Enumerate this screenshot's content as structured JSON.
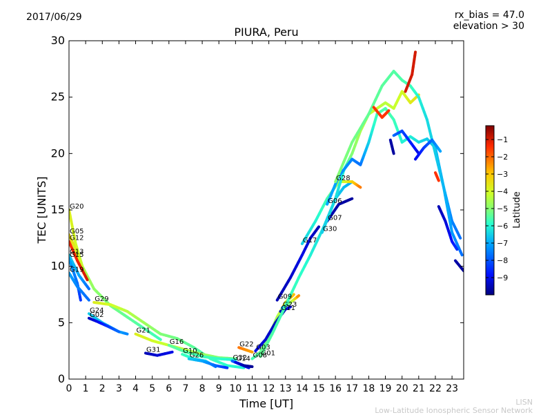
{
  "header": {
    "date": "2017/06/29",
    "rx_bias": "rx_bias = 47.0",
    "elevation": "elevation > 30"
  },
  "footer": {
    "credit_short": "LISN",
    "credit_long": "Low-Latitude Ionospheric Sensor Network"
  },
  "chart_data": {
    "type": "scatter",
    "title": "PIURA, Peru",
    "xlabel": "Time [UT]",
    "ylabel": "TEC [UNITS]",
    "xlim": [
      0,
      23.7
    ],
    "ylim": [
      0,
      30
    ],
    "xticks": [
      0,
      1,
      2,
      3,
      4,
      5,
      6,
      7,
      8,
      9,
      10,
      11,
      12,
      13,
      14,
      15,
      16,
      17,
      18,
      19,
      20,
      21,
      22,
      23
    ],
    "yticks": [
      0,
      5,
      10,
      15,
      20,
      25,
      30
    ],
    "grid": false,
    "colorbar": {
      "label": "Latitude",
      "range": [
        -10,
        -0.2
      ],
      "ticks": [
        -1,
        -2,
        -3,
        -4,
        -5,
        -6,
        -7,
        -8,
        -9
      ],
      "colors": [
        "#00007f",
        "#0010ff",
        "#00a4ff",
        "#29ffce",
        "#7dff7a",
        "#ceff29",
        "#ffc400",
        "#ff2900",
        "#7f0000"
      ]
    },
    "series": [
      {
        "name": "G20",
        "points": [
          [
            0,
            15
          ],
          [
            0.4,
            12
          ],
          [
            0.8,
            10
          ],
          [
            1.5,
            8
          ],
          [
            2.5,
            6.5
          ],
          [
            3.5,
            5.5
          ],
          [
            4.5,
            4.5
          ],
          [
            5.5,
            3.5
          ]
        ],
        "lat": [
          -3.5,
          -3.8,
          -4.2,
          -4.8,
          -5.2,
          -5.5,
          -5.8,
          -6
        ]
      },
      {
        "name": "G05",
        "points": [
          [
            0,
            12.8
          ],
          [
            0.4,
            11.5
          ],
          [
            0.8,
            10
          ]
        ],
        "lat": [
          -3,
          -3.5,
          -4
        ]
      },
      {
        "name": "G12",
        "points": [
          [
            0,
            12.2
          ],
          [
            0.5,
            10.5
          ],
          [
            1.1,
            8.8
          ]
        ],
        "lat": [
          -1.5,
          -1.3,
          -1
        ]
      },
      {
        "name": "G13",
        "points": [
          [
            0,
            11
          ],
          [
            0.6,
            9.2
          ],
          [
            1.2,
            8
          ]
        ],
        "lat": [
          -7,
          -7.5,
          -8
        ]
      },
      {
        "name": "G15",
        "points": [
          [
            0,
            10.7
          ],
          [
            0.5,
            8.5
          ],
          [
            0.7,
            7
          ]
        ],
        "lat": [
          -7.5,
          -8,
          -8.5
        ]
      },
      {
        "name": "G19",
        "points": [
          [
            0,
            9.4
          ],
          [
            0.5,
            8.2
          ],
          [
            1.2,
            7
          ]
        ],
        "lat": [
          -7.5,
          -7.8,
          -8
        ]
      },
      {
        "name": "G29",
        "points": [
          [
            1.5,
            6.8
          ],
          [
            2.5,
            6.6
          ],
          [
            3.5,
            6.0
          ],
          [
            4.5,
            5.0
          ],
          [
            5.5,
            4.0
          ],
          [
            6.5,
            3.6
          ],
          [
            7.5,
            2.8
          ],
          [
            8.5,
            1.8
          ],
          [
            9.5,
            1.2
          ],
          [
            10.5,
            1.0
          ]
        ],
        "lat": [
          -3.5,
          -3.8,
          -4.2,
          -4.6,
          -5,
          -5.3,
          -5.6,
          -6,
          -6.3,
          -6.5
        ]
      },
      {
        "name": "G24",
        "points": [
          [
            1.2,
            5.8
          ],
          [
            2.0,
            5.0
          ],
          [
            3.0,
            4.2
          ],
          [
            3.5,
            4.0
          ]
        ],
        "lat": [
          -7,
          -7.2,
          -7.5,
          -7.8
        ]
      },
      {
        "name": "G02",
        "points": [
          [
            1.2,
            5.4
          ],
          [
            1.7,
            5.1
          ],
          [
            2.3,
            4.7
          ],
          [
            3.0,
            4.2
          ]
        ],
        "lat": [
          -9.5,
          -9,
          -8.5,
          -8
        ]
      },
      {
        "name": "G21",
        "points": [
          [
            4,
            4
          ],
          [
            5,
            3.4
          ],
          [
            6,
            3.0
          ],
          [
            7,
            2.6
          ],
          [
            8,
            2.2
          ],
          [
            9,
            1.9
          ],
          [
            10,
            1.8
          ]
        ],
        "lat": [
          -3.5,
          -3.8,
          -4,
          -4.3,
          -4.6,
          -5,
          -5.3
        ]
      },
      {
        "name": "G31",
        "points": [
          [
            4.6,
            2.3
          ],
          [
            5.3,
            2.1
          ],
          [
            6.2,
            2.4
          ]
        ],
        "lat": [
          -9.5,
          -9.2,
          -9
        ]
      },
      {
        "name": "G16",
        "points": [
          [
            6.0,
            3.0
          ],
          [
            7.0,
            2.4
          ],
          [
            8.0,
            2.0
          ],
          [
            9.0,
            1.8
          ],
          [
            10.0,
            1.7
          ]
        ],
        "lat": [
          -5.5,
          -5.8,
          -6,
          -6.2,
          -6.5
        ]
      },
      {
        "name": "G10",
        "points": [
          [
            6.8,
            2.2
          ],
          [
            7.5,
            1.8
          ],
          [
            8.2,
            1.6
          ],
          [
            8.8,
            1.1
          ]
        ],
        "lat": [
          -6,
          -6.5,
          -7,
          -8
        ]
      },
      {
        "name": "G26",
        "points": [
          [
            7.2,
            1.8
          ],
          [
            8.0,
            1.6
          ],
          [
            8.8,
            1.2
          ],
          [
            9.5,
            1.0
          ]
        ],
        "lat": [
          -7,
          -7.5,
          -8,
          -8.5
        ]
      },
      {
        "name": "G32",
        "points": [
          [
            9.8,
            1.6
          ],
          [
            10.3,
            1.3
          ],
          [
            10.8,
            1.0
          ]
        ],
        "lat": [
          -8,
          -8.5,
          -9
        ]
      },
      {
        "name": "G22",
        "points": [
          [
            10.2,
            2.8
          ],
          [
            10.6,
            2.6
          ],
          [
            11.0,
            2.4
          ]
        ],
        "lat": [
          -2,
          -2.2,
          -2.4
        ]
      },
      {
        "name": "G14",
        "points": [
          [
            10.0,
            1.5
          ],
          [
            10.5,
            1.2
          ],
          [
            11.0,
            1.1
          ]
        ],
        "lat": [
          -9,
          -9.5,
          -9.8
        ]
      },
      {
        "name": "G08",
        "points": [
          [
            11,
            1.8
          ],
          [
            11.5,
            2.4
          ],
          [
            12,
            3.8
          ],
          [
            12.5,
            5.5
          ],
          [
            13,
            6.8
          ],
          [
            13.5,
            7.5
          ]
        ],
        "lat": [
          -6,
          -5.5,
          -5,
          -4.5,
          -3.5,
          -2.5
        ]
      },
      {
        "name": "G03",
        "points": [
          [
            11.2,
            2.5
          ],
          [
            11.8,
            3.5
          ],
          [
            12.4,
            5
          ],
          [
            13.0,
            6.2
          ]
        ],
        "lat": [
          -9,
          -9.2,
          -9.4,
          -9.6
        ]
      },
      {
        "name": "G23",
        "points": [
          [
            12.8,
            6.3
          ],
          [
            13.3,
            6.8
          ],
          [
            13.8,
            7.4
          ]
        ],
        "lat": [
          -8,
          -5,
          -2
        ]
      },
      {
        "name": "G11",
        "points": [
          [
            12.7,
            6.0
          ],
          [
            13.0,
            6.2
          ],
          [
            13.3,
            6.4
          ]
        ],
        "lat": [
          -9.5,
          -9.3,
          -9
        ]
      },
      {
        "name": "G01",
        "points": [
          [
            11.5,
            2
          ],
          [
            12.2,
            4
          ],
          [
            13,
            6.5
          ],
          [
            13.8,
            9
          ],
          [
            14.5,
            11
          ],
          [
            15.3,
            13.5
          ],
          [
            16,
            16
          ],
          [
            16.5,
            17
          ],
          [
            17,
            17.5
          ]
        ],
        "lat": [
          -5.5,
          -5.8,
          -6,
          -6.2,
          -6.5,
          -6.8,
          -7,
          -7.2,
          -7.5
        ]
      },
      {
        "name": "G09",
        "points": [
          [
            12.5,
            7
          ],
          [
            13.3,
            9
          ],
          [
            14,
            11
          ],
          [
            14.5,
            12.5
          ],
          [
            15.0,
            13.5
          ]
        ],
        "lat": [
          -9.5,
          -9.3,
          -9,
          -9.2,
          -9.5
        ]
      },
      {
        "name": "G07",
        "points": [
          [
            15.5,
            14
          ],
          [
            16.2,
            15.5
          ],
          [
            17,
            16
          ]
        ],
        "lat": [
          -9.5,
          -9.6,
          -9.7
        ]
      },
      {
        "name": "G17",
        "points": [
          [
            14,
            12
          ],
          [
            14.8,
            14
          ],
          [
            15.5,
            16
          ],
          [
            16.2,
            17.5
          ],
          [
            17.0,
            17.5
          ],
          [
            17.5,
            17.0
          ]
        ],
        "lat": [
          -7,
          -6.5,
          -6,
          -4.5,
          -3,
          -2
        ]
      },
      {
        "name": "G30",
        "points": [
          [
            15.2,
            13
          ],
          [
            16.0,
            16
          ],
          [
            16.5,
            18.5
          ],
          [
            17.0,
            20
          ],
          [
            17.5,
            22
          ],
          [
            18.0,
            23.5
          ],
          [
            18.5,
            24
          ],
          [
            19,
            24.5
          ],
          [
            19.5,
            24
          ],
          [
            20,
            25.5
          ],
          [
            20.5,
            24.5
          ],
          [
            21,
            25.2
          ]
        ],
        "lat": [
          -7,
          -6.8,
          -6.5,
          -5,
          -4.5,
          -4,
          -4,
          -4.2,
          -4,
          -3.8,
          -3.5,
          -3.2
        ]
      },
      {
        "name": "G06",
        "points": [
          [
            15.5,
            15.5
          ],
          [
            16.2,
            18
          ],
          [
            17.0,
            19.5
          ],
          [
            17.5,
            19.0
          ],
          [
            18.0,
            21
          ],
          [
            18.5,
            23.5
          ],
          [
            19,
            24
          ],
          [
            19.5,
            23
          ],
          [
            20,
            21
          ],
          [
            20.5,
            21.5
          ],
          [
            21,
            21
          ],
          [
            21.5,
            21.3
          ],
          [
            22,
            20.5
          ],
          [
            22.5,
            17
          ],
          [
            23,
            14
          ],
          [
            23.5,
            12.5
          ]
        ],
        "lat": [
          -7.5,
          -7.6,
          -7.8,
          -8,
          -7,
          -6,
          -5.8,
          -6,
          -6.5,
          -6.5,
          -6.8,
          -7,
          -7.2,
          -7.5,
          -7.8,
          -8
        ]
      },
      {
        "name": "G28",
        "points": [
          [
            16,
            17.5
          ],
          [
            17,
            21
          ],
          [
            18,
            23.5
          ],
          [
            18.8,
            26
          ],
          [
            19.5,
            27.3
          ],
          [
            20,
            26.5
          ],
          [
            20.5,
            26
          ],
          [
            21,
            25
          ],
          [
            21.5,
            23
          ],
          [
            22,
            20
          ],
          [
            22.5,
            17
          ],
          [
            23,
            13
          ],
          [
            23.6,
            11
          ]
        ],
        "lat": [
          -5,
          -5.2,
          -5.5,
          -5.6,
          -5.7,
          -5.8,
          -6,
          -6.5,
          -6.8,
          -7,
          -7.3,
          -7.6,
          -8
        ]
      },
      {
        "name": "",
        "points": [
          [
            18.3,
            24.1
          ],
          [
            18.8,
            23.2
          ],
          [
            19.2,
            23.8
          ]
        ],
        "lat": [
          -1.5,
          -1.5,
          -1.5
        ]
      },
      {
        "name": "",
        "points": [
          [
            20.2,
            25.5
          ],
          [
            20.6,
            27
          ],
          [
            20.8,
            29
          ]
        ],
        "lat": [
          -1,
          -1,
          -1
        ]
      },
      {
        "name": "",
        "points": [
          [
            19.5,
            21.6
          ],
          [
            20,
            22
          ],
          [
            20.5,
            21
          ],
          [
            21,
            20.0
          ]
        ],
        "lat": [
          -8,
          -8.3,
          -8.6,
          -9
        ]
      },
      {
        "name": "",
        "points": [
          [
            20.8,
            19.5
          ],
          [
            21.3,
            20.5
          ],
          [
            21.8,
            21.2
          ],
          [
            22.3,
            20.2
          ]
        ],
        "lat": [
          -9,
          -8.5,
          -8,
          -7.5
        ]
      },
      {
        "name": "",
        "points": [
          [
            22.2,
            15.3
          ],
          [
            22.6,
            14
          ],
          [
            23.0,
            12.2
          ],
          [
            23.3,
            11.5
          ]
        ],
        "lat": [
          -9.5,
          -9.2,
          -8.8,
          -8.5
        ]
      },
      {
        "name": "",
        "points": [
          [
            23.2,
            10.5
          ],
          [
            23.7,
            9.6
          ]
        ],
        "lat": [
          -9.6,
          -9.7
        ]
      },
      {
        "name": "",
        "points": [
          [
            22.0,
            18.3
          ],
          [
            22.2,
            17.6
          ]
        ],
        "lat": [
          -1.5,
          -1.5
        ]
      },
      {
        "name": "",
        "points": [
          [
            19.3,
            21.2
          ],
          [
            19.5,
            20.0
          ]
        ],
        "lat": [
          -9.6,
          -9.7
        ]
      }
    ]
  }
}
